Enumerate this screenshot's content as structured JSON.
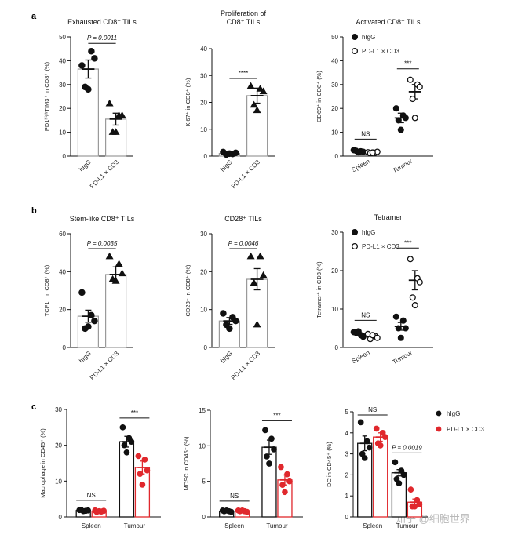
{
  "panel_labels": [
    "a",
    "b",
    "c"
  ],
  "watermark": "知乎 @细胞世界",
  "colors": {
    "black": "#111111",
    "red": "#e0282d",
    "bar_grey": "#9a9a9a"
  },
  "chart_data": [
    {
      "id": "a1",
      "type": "bar",
      "title": "Exhausted CD8⁺ TILs",
      "title2": "",
      "ylabel": "PD1ʰⁱᵍʰTIM3⁺ in CD8⁺ (%)",
      "ylim": [
        0,
        50
      ],
      "yticks": [
        0,
        10,
        20,
        30,
        40,
        50
      ],
      "categories": [
        "hIgG",
        "PD-L1 × CD3"
      ],
      "means": [
        36.5,
        15.5
      ],
      "sems": [
        3.8,
        2.5
      ],
      "points": [
        [
          38,
          44,
          41,
          29,
          28
        ],
        [
          22,
          17,
          17,
          10,
          10
        ]
      ],
      "markers": [
        "circle",
        "triangle"
      ],
      "annotation": "P = 0.0011"
    },
    {
      "id": "a2",
      "type": "bar",
      "title": "Proliferation of",
      "title2": "CD8⁺ TILs",
      "ylabel": "Ki67⁺ in CD8⁺ (%)",
      "ylim": [
        0,
        40
      ],
      "yticks": [
        0,
        10,
        20,
        30,
        40
      ],
      "categories": [
        "hIgG",
        "PD-L1 × CD3"
      ],
      "means": [
        1.0,
        22.5
      ],
      "sems": [
        0.3,
        2.8
      ],
      "points": [
        [
          1.5,
          0.8,
          1.2,
          0.6,
          0.9
        ],
        [
          26,
          25,
          24,
          19,
          17
        ]
      ],
      "markers": [
        "circle",
        "triangle"
      ],
      "annotation": "****"
    },
    {
      "id": "a3",
      "type": "scatter",
      "title": "Activated CD8⁺ TILs",
      "title2": "",
      "ylabel": "CD69⁺ in CD8⁺ (%)",
      "ylim": [
        0,
        50
      ],
      "yticks": [
        0,
        10,
        20,
        30,
        40,
        50
      ],
      "groups": [
        "Spleen",
        "Tumour"
      ],
      "series": [
        {
          "name": "hIgG",
          "fill": "filled",
          "means": [
            2.0,
            16.0
          ],
          "sems": [
            0.4,
            2.0
          ],
          "points": [
            [
              2.5,
              2.0,
              1.8,
              2.2,
              1.6
            ],
            [
              20,
              17,
              16,
              15,
              11
            ]
          ]
        },
        {
          "name": "PD-L1 × CD3",
          "fill": "open",
          "means": [
            1.5,
            27.0
          ],
          "sems": [
            0.3,
            3.0
          ],
          "points": [
            [
              1.6,
              1.4,
              1.8,
              1.2,
              1.5
            ],
            [
              32,
              30,
              29,
              24,
              16
            ]
          ]
        }
      ],
      "annotations": [
        "NS",
        "***"
      ],
      "legend": [
        "hIgG",
        "PD-L1 × CD3"
      ]
    },
    {
      "id": "b1",
      "type": "bar",
      "title": "Stem-like CD8⁺ TILs",
      "title2": "",
      "ylabel": "TCF1⁺ in CD8⁺ (%)",
      "ylim": [
        0,
        60
      ],
      "yticks": [
        0,
        20,
        40,
        60
      ],
      "categories": [
        "hIgG",
        "PD-L1 × CD3"
      ],
      "means": [
        16.5,
        38.5
      ],
      "sems": [
        3.2,
        4.0
      ],
      "points": [
        [
          29,
          17,
          14,
          10,
          11
        ],
        [
          48,
          44,
          39,
          36,
          35
        ]
      ],
      "markers": [
        "circle",
        "triangle"
      ],
      "annotation": "P = 0.0035"
    },
    {
      "id": "b2",
      "type": "bar",
      "title": "CD28⁺ TILs",
      "title2": "",
      "ylabel": "CD28⁺ in CD8⁺ (%)",
      "ylim": [
        0,
        30
      ],
      "yticks": [
        0,
        10,
        20,
        30
      ],
      "categories": [
        "hIgG",
        "PD-L1 × CD3"
      ],
      "means": [
        7.0,
        18.0
      ],
      "sems": [
        0.9,
        2.8
      ],
      "points": [
        [
          9,
          8,
          7,
          6,
          5
        ],
        [
          24,
          24,
          19,
          17,
          6
        ]
      ],
      "markers": [
        "circle",
        "triangle"
      ],
      "annotation": "P = 0.0046"
    },
    {
      "id": "b3",
      "type": "scatter",
      "title": "Tetramer",
      "title2": "",
      "ylabel": "Tetramer⁺ in CD8 (%)",
      "ylim": [
        0,
        30
      ],
      "yticks": [
        0,
        10,
        20,
        30
      ],
      "groups": [
        "Spleen",
        "Tumour"
      ],
      "series": [
        {
          "name": "hIgG",
          "fill": "filled",
          "means": [
            3.5,
            5.5
          ],
          "sems": [
            0.5,
            1.0
          ],
          "points": [
            [
              4.0,
              3.2,
              2.8,
              3.8,
              4.2
            ],
            [
              8,
              7,
              5,
              5,
              2.5
            ]
          ]
        },
        {
          "name": "PD-L1 × CD3",
          "fill": "open",
          "means": [
            2.8,
            17.5
          ],
          "sems": [
            0.4,
            2.5
          ],
          "points": [
            [
              3.5,
              3.0,
              2.5,
              2.2,
              3.2
            ],
            [
              23,
              18,
              17,
              13,
              11
            ]
          ]
        }
      ],
      "annotations": [
        "NS",
        "***"
      ],
      "legend": [
        "hIgG",
        "PD-L1 × CD3"
      ]
    },
    {
      "id": "c1",
      "type": "bar_grouped",
      "title": "",
      "title2": "",
      "ylabel": "Macrophage in CD45⁺ (%)",
      "ylim": [
        0,
        30
      ],
      "yticks": [
        0,
        10,
        20,
        30
      ],
      "groups": [
        "Spleen",
        "Tumour"
      ],
      "series": [
        {
          "name": "hIgG",
          "color": "#111111",
          "means": [
            1.8,
            21.0
          ],
          "sems": [
            0.2,
            1.5
          ],
          "points": [
            [
              1.9,
              1.7,
              1.8,
              2.0,
              1.6
            ],
            [
              25,
              22,
              21,
              20,
              18
            ]
          ]
        },
        {
          "name": "PD-L1 × CD3",
          "color": "#e0282d",
          "means": [
            1.6,
            13.8
          ],
          "sems": [
            0.2,
            1.8
          ],
          "points": [
            [
              1.8,
              1.5,
              1.7,
              1.4,
              1.6
            ],
            [
              17,
              16,
              13,
              12,
              9
            ]
          ]
        }
      ],
      "annotations": [
        "NS",
        "***"
      ]
    },
    {
      "id": "c2",
      "type": "bar_grouped",
      "title": "",
      "title2": "",
      "ylabel": "MDSC in CD45⁺ (%)",
      "ylim": [
        0,
        15
      ],
      "yticks": [
        0,
        5,
        10,
        15
      ],
      "groups": [
        "Spleen",
        "Tumour"
      ],
      "series": [
        {
          "name": "hIgG",
          "color": "#111111",
          "means": [
            0.8,
            9.8
          ],
          "sems": [
            0.1,
            1.0
          ],
          "points": [
            [
              0.9,
              0.8,
              0.7,
              0.8,
              0.9
            ],
            [
              12.2,
              11.0,
              9.5,
              8.5,
              7.5
            ]
          ]
        },
        {
          "name": "PD-L1 × CD3",
          "color": "#e0282d",
          "means": [
            0.8,
            5.2
          ],
          "sems": [
            0.1,
            0.7
          ],
          "points": [
            [
              0.9,
              0.8,
              0.7,
              0.8,
              0.9
            ],
            [
              7.0,
              6.0,
              5.0,
              4.5,
              3.5
            ]
          ]
        }
      ],
      "annotations": [
        "NS",
        "***"
      ]
    },
    {
      "id": "c3",
      "type": "bar_grouped",
      "title": "",
      "title2": "",
      "ylabel": "DC in CD45⁺ (%)",
      "ylim": [
        0,
        5
      ],
      "yticks": [
        0,
        1,
        2,
        3,
        4,
        5
      ],
      "groups": [
        "Spleen",
        "Tumour"
      ],
      "series": [
        {
          "name": "hIgG",
          "color": "#111111",
          "means": [
            3.5,
            2.1
          ],
          "sems": [
            0.35,
            0.15
          ],
          "points": [
            [
              4.5,
              3.6,
              3.3,
              3.0,
              2.8
            ],
            [
              2.6,
              2.2,
              2.0,
              1.8,
              1.6
            ]
          ]
        },
        {
          "name": "PD-L1 × CD3",
          "color": "#e0282d",
          "means": [
            3.8,
            0.7
          ],
          "sems": [
            0.2,
            0.15
          ],
          "points": [
            [
              4.2,
              4.0,
              3.8,
              3.5,
              3.4
            ],
            [
              1.3,
              0.8,
              0.6,
              0.5,
              0.5
            ]
          ]
        }
      ],
      "annotations": [
        "NS",
        "P = 0.0019"
      ],
      "legend": [
        "hIgG",
        "PD-L1 × CD3"
      ]
    }
  ]
}
